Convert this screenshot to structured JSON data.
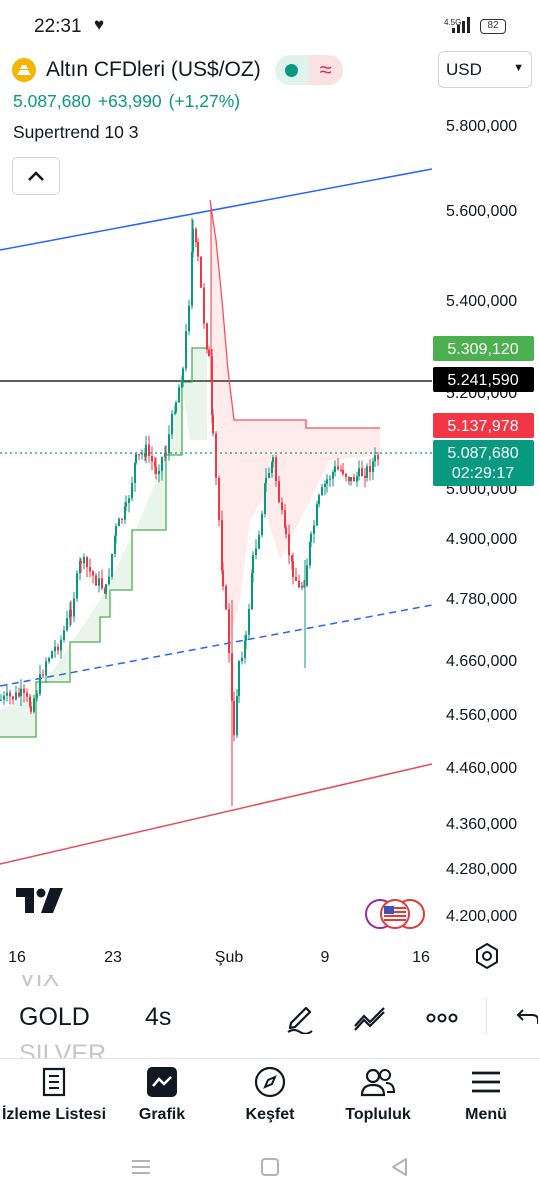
{
  "status_bar": {
    "time": "22:31",
    "network": "4.5G",
    "battery": "82"
  },
  "header": {
    "symbol_title": "Altın CFDleri (US$/OZ)",
    "currency": "USD",
    "price": "5.087,680",
    "change": "+63,990",
    "change_pct": "(+1,27%)",
    "indicator": "Supertrend 10 3"
  },
  "colors": {
    "up": "#089981",
    "down": "#f23645",
    "supertrend_up": "#4caf50",
    "supertrend_down": "#f7525f",
    "channel_top": "#2962ff",
    "channel_bottom": "#e84b57",
    "accent": "#f4b400"
  },
  "chart": {
    "price_axis": [
      "5.800,000",
      "5.600,000",
      "5.400,000",
      "5.200,000",
      "5.000,000",
      "4.900,000",
      "4.780,000",
      "4.660,000",
      "4.560,000",
      "4.460,000",
      "4.360,000",
      "4.280,000",
      "4.200,000"
    ],
    "time_axis": [
      "16",
      "23",
      "Şub",
      "9",
      "16"
    ],
    "price_tags": {
      "green": "5.309,120",
      "black": "5.241,590",
      "red": "5.137,978",
      "last": "5.087,680",
      "countdown": "02:29:17"
    }
  },
  "toolbar": {
    "symbols": [
      "VIX",
      "GOLD",
      "SILVER"
    ],
    "interval": "4s",
    "draw_icon": "pencil-icon",
    "indicators_icon": "indicators-icon",
    "more_icon": "more-icon",
    "undo_icon": "undo-icon"
  },
  "tabs": [
    {
      "label": "İzleme Listesi",
      "icon": "watchlist-icon"
    },
    {
      "label": "Grafik",
      "icon": "chart-icon"
    },
    {
      "label": "Keşfet",
      "icon": "compass-icon"
    },
    {
      "label": "Topluluk",
      "icon": "community-icon"
    },
    {
      "label": "Menü",
      "icon": "menu-icon"
    }
  ]
}
